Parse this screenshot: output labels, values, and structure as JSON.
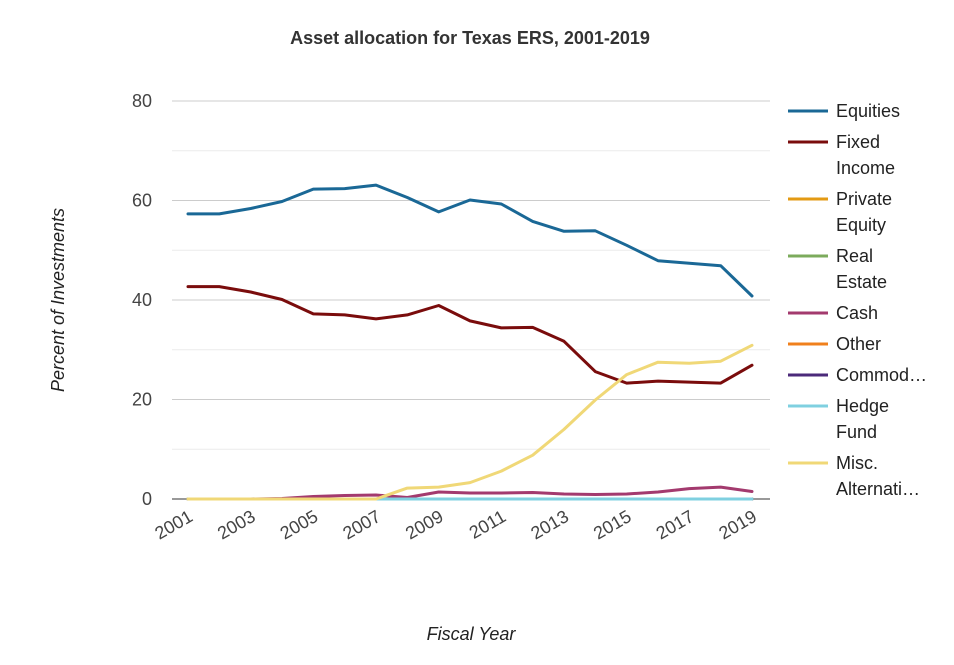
{
  "chart_data": {
    "type": "line",
    "title": "Asset allocation for Texas ERS, 2001-2019",
    "xlabel": "Fiscal Year",
    "ylabel": "Percent of Investments",
    "ylim": [
      0,
      80
    ],
    "yticks": [
      "0",
      "20",
      "40",
      "60",
      "80"
    ],
    "xticks": [
      "2001",
      "2003",
      "2005",
      "2007",
      "2009",
      "2011",
      "2013",
      "2015",
      "2017",
      "2019"
    ],
    "x": [
      2001,
      2002,
      2003,
      2004,
      2005,
      2006,
      2007,
      2008,
      2009,
      2010,
      2011,
      2012,
      2013,
      2014,
      2015,
      2016,
      2017,
      2018,
      2019
    ],
    "grid": true,
    "legend_position": "right",
    "series": [
      {
        "name": "Equities",
        "legend_lines": [
          "Equities"
        ],
        "color": "#1a6896",
        "values": [
          57.3,
          57.3,
          58.4,
          59.8,
          62.3,
          62.4,
          63.1,
          60.6,
          57.7,
          60.1,
          59.3,
          55.8,
          53.8,
          53.9,
          51.0,
          47.9,
          47.4,
          46.9,
          40.8
        ]
      },
      {
        "name": "Fixed Income",
        "legend_lines": [
          "Fixed",
          "Income"
        ],
        "color": "#7a0c0c",
        "values": [
          42.7,
          42.7,
          41.6,
          40.1,
          37.2,
          37.0,
          36.2,
          37.0,
          38.9,
          35.8,
          34.4,
          34.5,
          31.7,
          25.6,
          23.3,
          23.7,
          23.5,
          23.3,
          26.9
        ]
      },
      {
        "name": "Private Equity",
        "legend_lines": [
          "Private",
          "Equity"
        ],
        "color": "#e39a13",
        "values": [
          0,
          0,
          0,
          0,
          0,
          0,
          0,
          0,
          0,
          0,
          0,
          0,
          0,
          0,
          0,
          0,
          0,
          0,
          0
        ]
      },
      {
        "name": "Real Estate",
        "legend_lines": [
          "Real",
          "Estate"
        ],
        "color": "#7cab5c",
        "values": [
          0,
          0,
          0,
          0,
          0,
          0,
          0,
          0,
          0,
          0,
          0,
          0,
          0,
          0,
          0,
          0,
          0,
          0,
          0
        ]
      },
      {
        "name": "Cash",
        "legend_lines": [
          "Cash"
        ],
        "color": "#a33a6e",
        "values": [
          0,
          0,
          0,
          0.1,
          0.5,
          0.7,
          0.8,
          0.3,
          1.4,
          1.2,
          1.2,
          1.3,
          1.0,
          0.9,
          1.0,
          1.4,
          2.1,
          2.4,
          1.5
        ]
      },
      {
        "name": "Other",
        "legend_lines": [
          "Other"
        ],
        "color": "#f0801c",
        "values": [
          0,
          0,
          0,
          0,
          0,
          0,
          0,
          0,
          0,
          0,
          0,
          0,
          0,
          0,
          0,
          0,
          0,
          0,
          0
        ]
      },
      {
        "name": "Commod…",
        "legend_lines": [
          "Commod…"
        ],
        "color": "#4b2a7a",
        "values": [
          0,
          0,
          0,
          0,
          0,
          0,
          0,
          0,
          0,
          0,
          0,
          0,
          0,
          0,
          0,
          0,
          0,
          0,
          0
        ]
      },
      {
        "name": "Hedge Fund",
        "legend_lines": [
          "Hedge",
          "Fund"
        ],
        "color": "#7fd0e0",
        "values": [
          0,
          0,
          0,
          0,
          0,
          0,
          0,
          0,
          0,
          0,
          0,
          0,
          0,
          0,
          0,
          0,
          0,
          0,
          0
        ]
      },
      {
        "name": "Misc. Alternati…",
        "legend_lines": [
          "Misc.",
          "Alternati…"
        ],
        "color": "#f0d877",
        "values": [
          0,
          0,
          0,
          0,
          0,
          0,
          0,
          2.2,
          2.4,
          3.3,
          5.6,
          8.8,
          14.0,
          19.9,
          25.0,
          27.5,
          27.3,
          27.7,
          30.9
        ]
      }
    ]
  }
}
